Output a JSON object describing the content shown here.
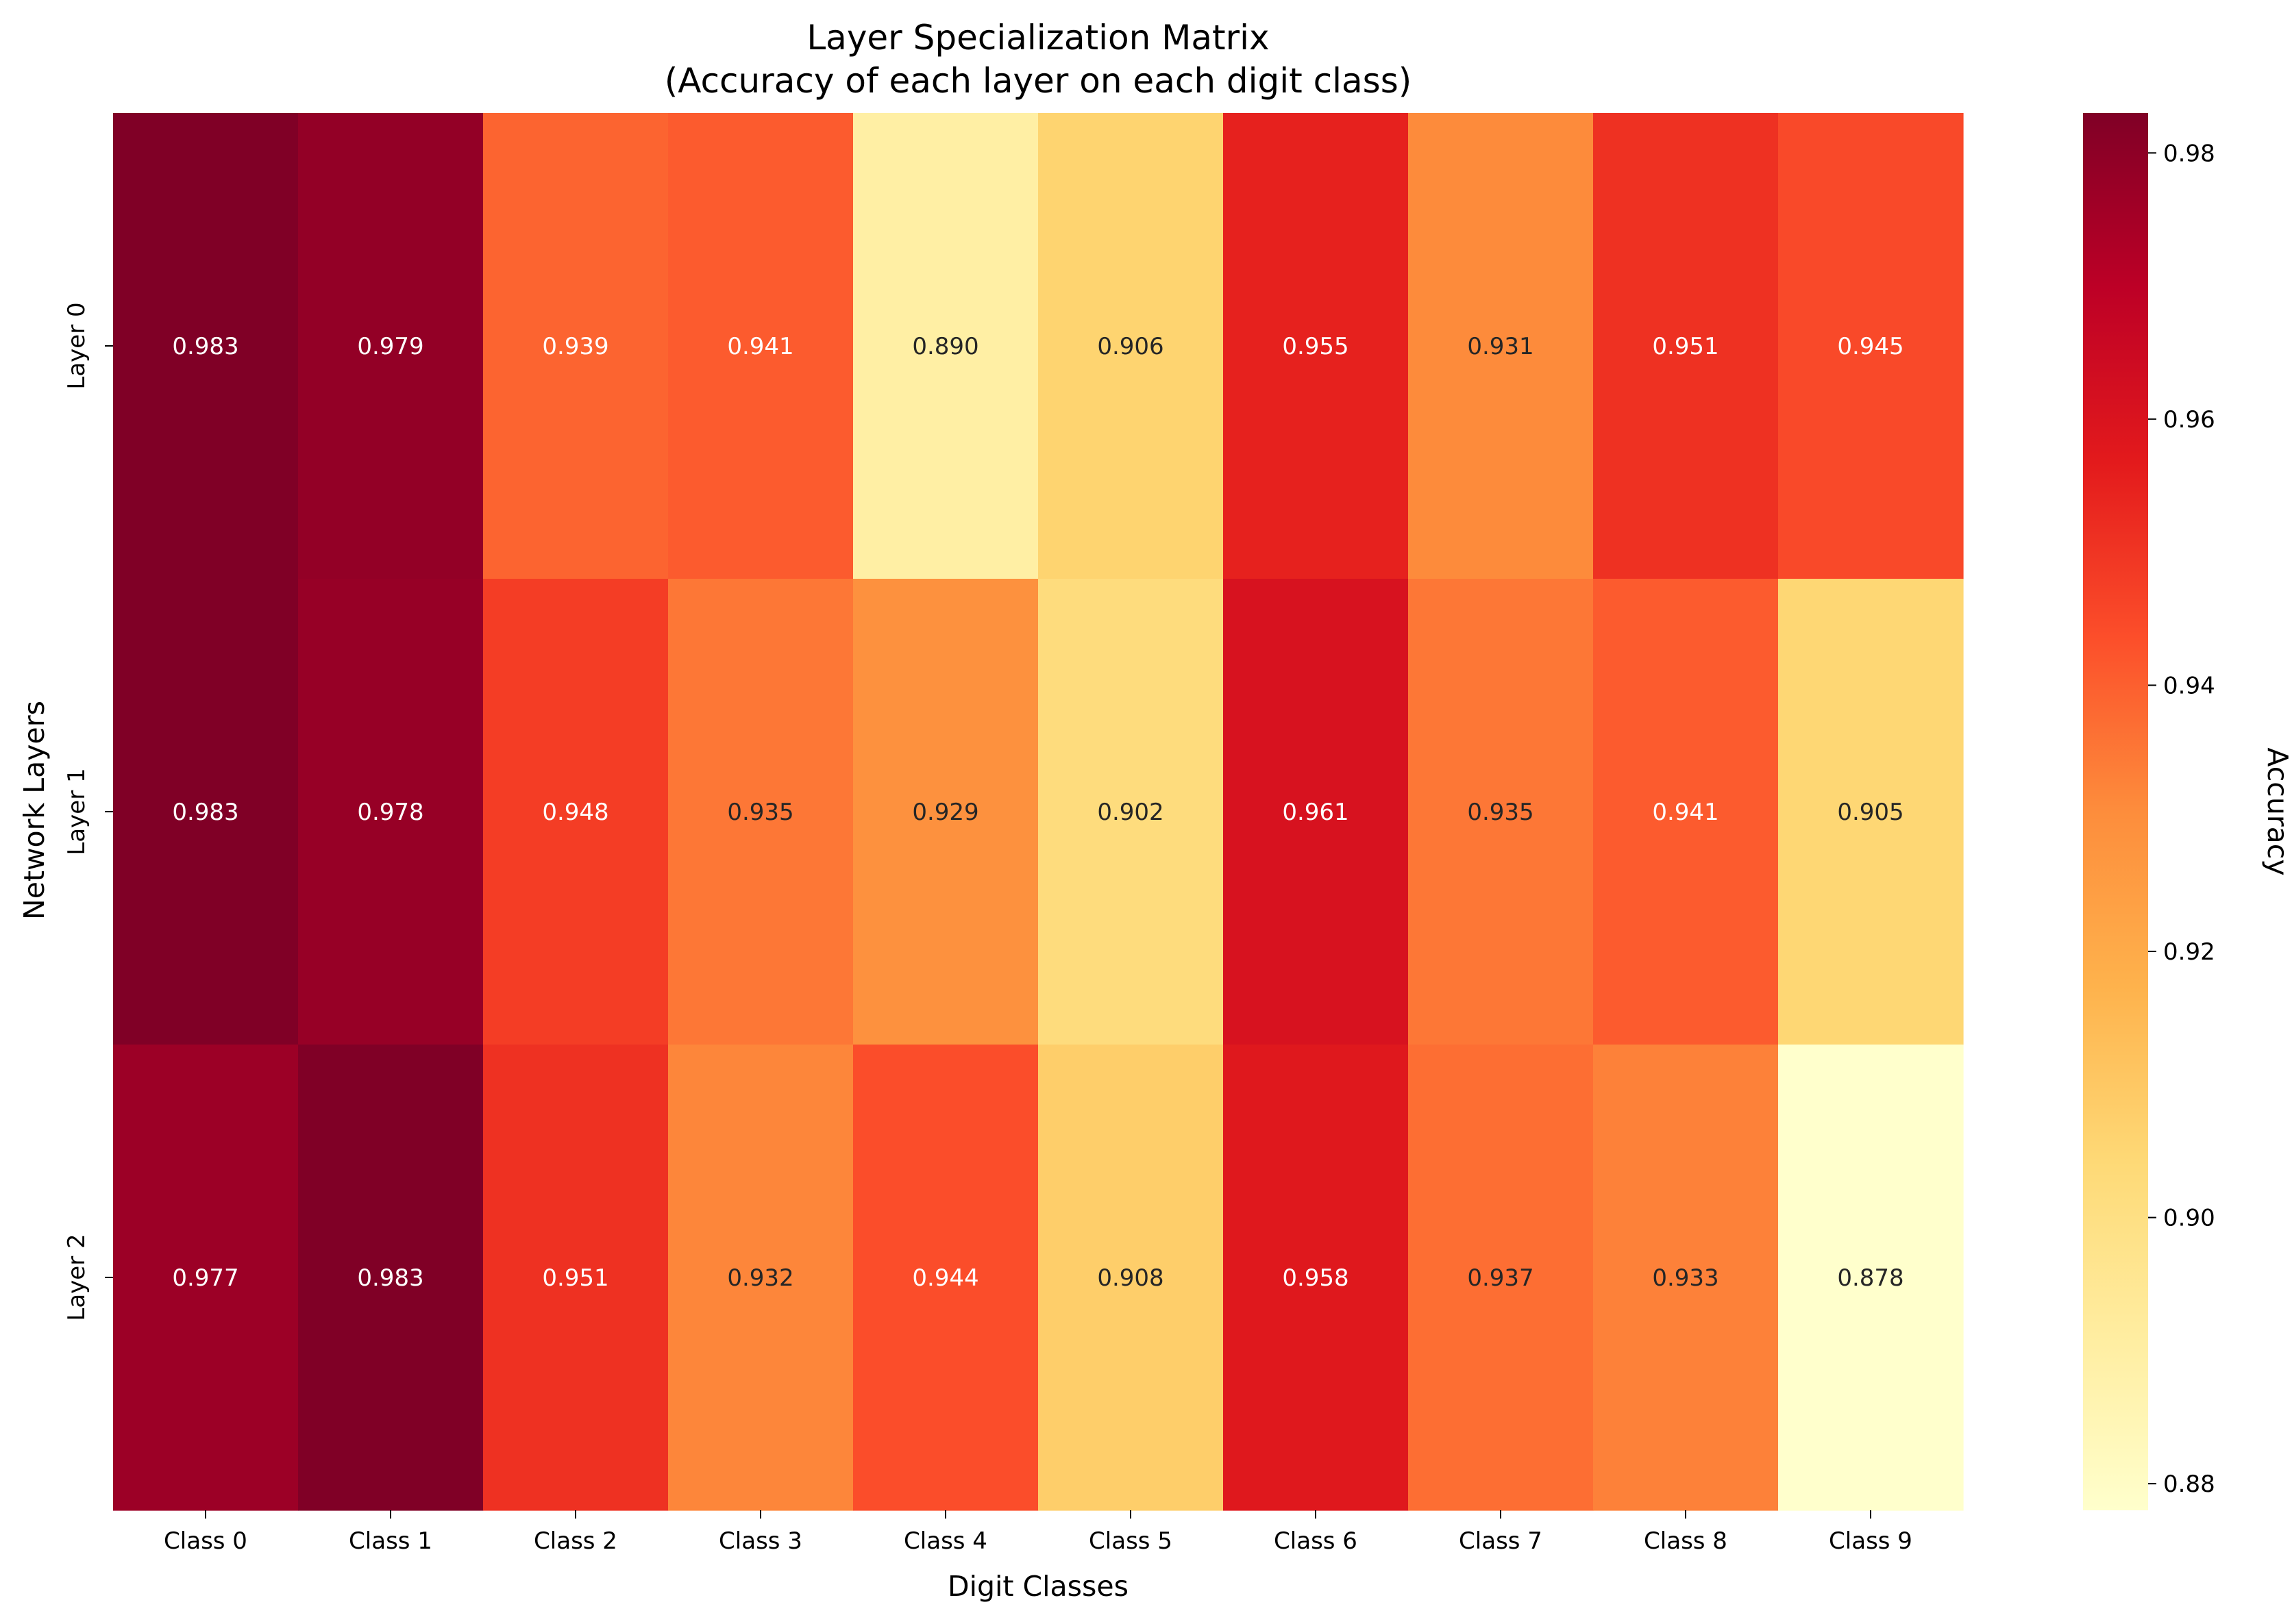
{
  "chart_data": {
    "type": "heatmap",
    "title": "Layer Specialization Matrix",
    "subtitle": "(Accuracy of each layer on each digit class)",
    "xlabel": "Digit Classes",
    "ylabel": "Network Layers",
    "x_categories": [
      "Class 0",
      "Class 1",
      "Class 2",
      "Class 3",
      "Class 4",
      "Class 5",
      "Class 6",
      "Class 7",
      "Class 8",
      "Class 9"
    ],
    "y_categories": [
      "Layer 0",
      "Layer 1",
      "Layer 2"
    ],
    "values": [
      [
        0.983,
        0.979,
        0.939,
        0.941,
        0.89,
        0.906,
        0.955,
        0.931,
        0.951,
        0.945
      ],
      [
        0.983,
        0.978,
        0.948,
        0.935,
        0.929,
        0.902,
        0.961,
        0.935,
        0.941,
        0.905
      ],
      [
        0.977,
        0.983,
        0.951,
        0.932,
        0.944,
        0.908,
        0.958,
        0.937,
        0.933,
        0.878
      ]
    ],
    "value_labels": [
      [
        "0.983",
        "0.979",
        "0.939",
        "0.941",
        "0.890",
        "0.906",
        "0.955",
        "0.931",
        "0.951",
        "0.945"
      ],
      [
        "0.983",
        "0.978",
        "0.948",
        "0.935",
        "0.929",
        "0.902",
        "0.961",
        "0.935",
        "0.941",
        "0.905"
      ],
      [
        "0.977",
        "0.983",
        "0.951",
        "0.932",
        "0.944",
        "0.908",
        "0.958",
        "0.937",
        "0.933",
        "0.878"
      ]
    ],
    "colorbar": {
      "label": "Accuracy",
      "range": [
        0.878,
        0.983
      ],
      "ticks": [
        0.88,
        0.9,
        0.92,
        0.94,
        0.96,
        0.98
      ],
      "tick_labels": [
        "0.88",
        "0.90",
        "0.92",
        "0.94",
        "0.96",
        "0.98"
      ],
      "colormap": "YlOrRd",
      "colors": [
        "#ffffcc",
        "#ffeda0",
        "#fed976",
        "#feb24c",
        "#fd8d3c",
        "#fc4e2a",
        "#e31a1c",
        "#bd0026",
        "#800026"
      ]
    },
    "grid": false
  }
}
